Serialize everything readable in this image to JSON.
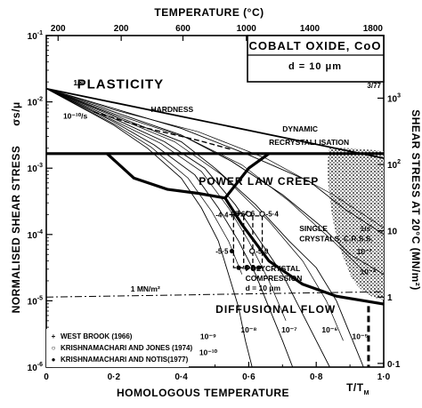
{
  "chart_data": {
    "type": "line",
    "title": "COBALT OXIDE, CoO",
    "subtitle": "d = 10 μm",
    "figure_code": "3/77",
    "xlabel": "HOMOLOGOUS TEMPERATURE",
    "xlabel_ratio": "T/T",
    "xlabel_ratio_sub": "M",
    "x_top_label": "TEMPERATURE (°C)",
    "ylabel_left": "NORMALISED SHEAR STRESS",
    "ylabel_left_symbol": "σs/μ",
    "ylabel_right": "SHEAR STRESS AT 20°C (MN/m²)",
    "xlim": [
      0,
      1.0
    ],
    "ylim_log10": [
      -6,
      -1
    ],
    "x_ticks": [
      {
        "value": 0,
        "label": "0"
      },
      {
        "value": 0.2,
        "label": "0·2"
      },
      {
        "value": 0.4,
        "label": "0·4"
      },
      {
        "value": 0.6,
        "label": "0·6"
      },
      {
        "value": 0.8,
        "label": "0·8"
      },
      {
        "value": 1.0,
        "label": "1·0"
      }
    ],
    "x_top_ticks": [
      {
        "x": 0.035,
        "label": "200"
      },
      {
        "x": 0.222,
        "label": "200"
      },
      {
        "x": 0.405,
        "label": "600"
      },
      {
        "x": 0.593,
        "label": "1000"
      },
      {
        "x": 0.781,
        "label": "1400"
      },
      {
        "x": 0.968,
        "label": "1800"
      }
    ],
    "y_left_ticks": [
      {
        "log": -1,
        "base": "10",
        "exp": "-1"
      },
      {
        "log": -2,
        "base": "10",
        "exp": "-2"
      },
      {
        "log": -3,
        "base": "10",
        "exp": "-3"
      },
      {
        "log": -4,
        "base": "10",
        "exp": "-4"
      },
      {
        "log": -5,
        "base": "10",
        "exp": "-5"
      },
      {
        "log": -6,
        "base": "10",
        "exp": "-6"
      }
    ],
    "y_right_ticks": [
      {
        "log": -1.944,
        "label": "10",
        "exp": "3"
      },
      {
        "log": -2.944,
        "label": "10",
        "exp": "2"
      },
      {
        "log": -3.944,
        "label": "10",
        "exp": ""
      },
      {
        "log": -4.944,
        "label": "1",
        "exp": ""
      },
      {
        "log": -5.944,
        "label": "0·1",
        "exp": ""
      }
    ],
    "regions": [
      {
        "label": "PLASTICITY",
        "x": 0.22,
        "log": -1.8,
        "size": 15
      },
      {
        "label": "POWER LAW CREEP",
        "x": 0.63,
        "log": -3.25,
        "size": 12
      },
      {
        "label": "DIFFUSIONAL  FLOW",
        "x": 0.68,
        "log": -5.18,
        "size": 12
      }
    ],
    "boundaries": [
      {
        "name": "plasticity-boundary",
        "points": [
          [
            0,
            -1.8
          ],
          [
            1.0,
            -2.85
          ]
        ]
      },
      {
        "name": "dynamic-recrystallisation-line",
        "points": [
          [
            0,
            -2.78
          ],
          [
            1.0,
            -2.78
          ]
        ]
      },
      {
        "name": "plasticity-powerlaw-boundary",
        "points": [
          [
            0.18,
            -2.78
          ],
          [
            0.26,
            -3.15
          ],
          [
            0.36,
            -3.32
          ],
          [
            0.45,
            -3.38
          ],
          [
            0.53,
            -3.45
          ],
          [
            0.6,
            -3.0
          ],
          [
            0.66,
            -2.78
          ]
        ]
      },
      {
        "name": "powerlaw-diffusional-boundary",
        "points": [
          [
            0.53,
            -3.45
          ],
          [
            0.58,
            -3.85
          ],
          [
            0.66,
            -4.4
          ],
          [
            0.76,
            -4.75
          ],
          [
            0.86,
            -4.93
          ],
          [
            1.0,
            -5.05
          ]
        ]
      }
    ],
    "strain_rate_contours": [
      {
        "label": "1/s",
        "points": [
          [
            0,
            -1.8
          ],
          [
            0.2,
            -2.1
          ],
          [
            0.4,
            -2.4
          ],
          [
            0.6,
            -2.8
          ],
          [
            0.78,
            -3.2
          ],
          [
            0.88,
            -3.6
          ],
          [
            1.0,
            -4.0
          ]
        ]
      },
      {
        "label": "10⁻²",
        "points": [
          [
            0,
            -1.8
          ],
          [
            0.2,
            -2.15
          ],
          [
            0.4,
            -2.5
          ],
          [
            0.55,
            -2.9
          ],
          [
            0.7,
            -3.4
          ],
          [
            0.82,
            -3.9
          ],
          [
            0.9,
            -4.3
          ],
          [
            1.0,
            -4.6
          ]
        ]
      },
      {
        "label": "10⁻⁴",
        "points": [
          [
            0,
            -1.8
          ],
          [
            0.2,
            -2.2
          ],
          [
            0.4,
            -2.6
          ],
          [
            0.5,
            -3.0
          ],
          [
            0.62,
            -3.55
          ],
          [
            0.72,
            -4.1
          ],
          [
            0.8,
            -4.5
          ],
          [
            0.86,
            -5.0
          ],
          [
            0.9,
            -5.5
          ],
          [
            0.94,
            -6.0
          ]
        ]
      },
      {
        "label": "10⁻⁶",
        "points": [
          [
            0,
            -1.8
          ],
          [
            0.2,
            -2.25
          ],
          [
            0.35,
            -2.6
          ],
          [
            0.47,
            -3.0
          ],
          [
            0.56,
            -3.55
          ],
          [
            0.64,
            -4.15
          ],
          [
            0.7,
            -4.6
          ],
          [
            0.76,
            -5.2
          ],
          [
            0.8,
            -5.6
          ],
          [
            0.84,
            -6.0
          ]
        ]
      },
      {
        "label": "10⁻⁸",
        "points": [
          [
            0,
            -1.8
          ],
          [
            0.2,
            -2.3
          ],
          [
            0.32,
            -2.65
          ],
          [
            0.44,
            -3.1
          ],
          [
            0.51,
            -3.6
          ],
          [
            0.57,
            -4.1
          ],
          [
            0.62,
            -4.6
          ],
          [
            0.66,
            -5.1
          ],
          [
            0.7,
            -5.6
          ],
          [
            0.73,
            -6.0
          ]
        ]
      },
      {
        "label": "10⁻¹⁰",
        "points": [
          [
            0,
            -1.8
          ],
          [
            0.2,
            -2.35
          ],
          [
            0.3,
            -2.7
          ],
          [
            0.4,
            -3.15
          ],
          [
            0.46,
            -3.6
          ],
          [
            0.51,
            -4.1
          ],
          [
            0.54,
            -4.6
          ],
          [
            0.57,
            -5.1
          ],
          [
            0.59,
            -5.6
          ],
          [
            0.61,
            -6.0
          ]
        ]
      }
    ],
    "extra_contours": [
      [
        [
          0,
          -1.8
        ],
        [
          0.2,
          -2.12
        ],
        [
          0.45,
          -2.45
        ],
        [
          0.65,
          -2.85
        ],
        [
          0.85,
          -3.4
        ],
        [
          1.0,
          -3.9
        ]
      ],
      [
        [
          0,
          -1.8
        ],
        [
          0.2,
          -2.18
        ],
        [
          0.42,
          -2.55
        ],
        [
          0.58,
          -2.95
        ],
        [
          0.72,
          -3.5
        ],
        [
          0.85,
          -4.1
        ],
        [
          0.95,
          -4.6
        ]
      ],
      [
        [
          0,
          -1.8
        ],
        [
          0.2,
          -2.22
        ],
        [
          0.38,
          -2.6
        ],
        [
          0.52,
          -3.1
        ],
        [
          0.66,
          -3.8
        ],
        [
          0.76,
          -4.4
        ],
        [
          0.83,
          -5.0
        ],
        [
          0.88,
          -5.6
        ]
      ],
      [
        [
          0,
          -1.8
        ],
        [
          0.2,
          -2.28
        ],
        [
          0.34,
          -2.63
        ],
        [
          0.46,
          -3.05
        ],
        [
          0.54,
          -3.6
        ],
        [
          0.6,
          -4.1
        ],
        [
          0.66,
          -4.7
        ],
        [
          0.71,
          -5.3
        ]
      ],
      [
        [
          0,
          -1.8
        ],
        [
          0.2,
          -2.33
        ],
        [
          0.31,
          -2.68
        ],
        [
          0.42,
          -3.15
        ],
        [
          0.49,
          -3.65
        ],
        [
          0.54,
          -4.1
        ],
        [
          0.58,
          -4.6
        ]
      ]
    ],
    "hardness_line": [
      [
        0.14,
        -2.15
      ],
      [
        0.3,
        -2.4
      ],
      [
        0.45,
        -2.58
      ],
      [
        0.55,
        -2.72
      ]
    ],
    "one_mn_line": {
      "label": "1 MN/m²",
      "log": -4.944
    },
    "diffusional_labels": [
      {
        "label": "10⁻⁹",
        "x": 0.48,
        "log": -5.58
      },
      {
        "label": "10⁻⁸",
        "x": 0.6,
        "log": -5.48
      },
      {
        "label": "10⁻⁷",
        "x": 0.72,
        "log": -5.48
      },
      {
        "label": "10⁻⁶",
        "x": 0.84,
        "log": -5.48
      },
      {
        "label": "10⁻⁵",
        "x": 0.93,
        "log": -5.58
      },
      {
        "label": "10⁻¹⁰",
        "x": 0.48,
        "log": -5.82
      }
    ],
    "right_rate_labels": [
      {
        "label": "1/s",
        "x": 0.93,
        "log": -3.95
      },
      {
        "label": "10⁻²",
        "x": 0.92,
        "log": -4.3
      },
      {
        "label": "10⁻⁴",
        "x": 0.93,
        "log": -4.6
      }
    ],
    "annotations": [
      {
        "label": "HARDNESS",
        "x": 0.31,
        "log": -2.15
      },
      {
        "label": "1/s",
        "x": 0.08,
        "log": -1.75
      },
      {
        "label": "10⁻¹⁰/s",
        "x": 0.05,
        "log": -2.25
      },
      {
        "label": "DYNAMIC",
        "x": 0.7,
        "log": -2.45
      },
      {
        "label": "RECRYSTALLISATION",
        "x": 0.66,
        "log": -2.65
      },
      {
        "label": "SINGLE",
        "x": 0.75,
        "log": -3.95
      },
      {
        "label": "CRYSTALS, C.R.S.S.",
        "x": 0.75,
        "log": -4.1
      },
      {
        "label": "POLYCRYSTAL",
        "x": 0.59,
        "log": -4.55
      },
      {
        "label": "COMPRESSION",
        "x": 0.59,
        "log": -4.7
      },
      {
        "label": "d = 10 μm",
        "x": 0.59,
        "log": -4.85
      }
    ],
    "data_points": [
      {
        "source": "westbrook",
        "x": 0.55,
        "log": -3.7,
        "label": "-4·4"
      },
      {
        "source": "westbrook",
        "x": 0.57,
        "log": -3.68,
        "label": "-4·6"
      },
      {
        "source": "krishnamachari-jones",
        "x": 0.6,
        "log": -3.69,
        "label": "-5·6"
      },
      {
        "source": "krishnamachari-jones",
        "x": 0.64,
        "log": -3.69,
        "label": "-5·4"
      },
      {
        "source": "krishnamachari-notis",
        "x": 0.55,
        "log": -4.25,
        "label": "-5·5"
      },
      {
        "source": "krishnamachari-notis",
        "x": 0.57,
        "log": -4.5,
        "label": "-6·0"
      },
      {
        "source": "krishnamachari-notis",
        "x": 0.63,
        "log": -4.5,
        "label": "-5·8"
      },
      {
        "source": "krishnamachari-jones",
        "x": 0.61,
        "log": -4.25,
        "label": "-5·0"
      }
    ],
    "legend": [
      {
        "symbol": "+",
        "label": "WEST BROOK (1966)"
      },
      {
        "symbol": "○",
        "label": "KRISHNAMACHARI AND JONES (1974)"
      },
      {
        "symbol": "●",
        "label": "KRISHNAMACHARI AND NOTIS(1977)"
      }
    ]
  }
}
